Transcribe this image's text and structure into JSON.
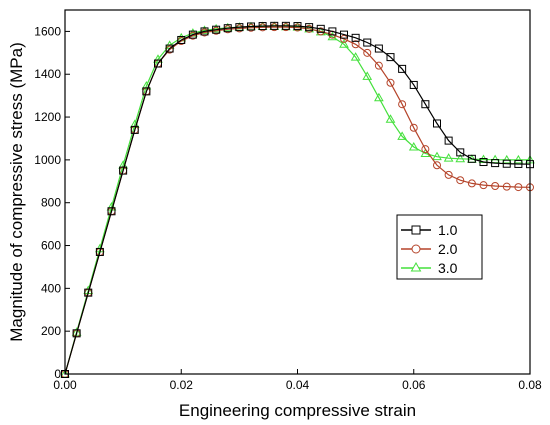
{
  "chart_data": {
    "type": "line",
    "title": "",
    "xlabel": "Engineering compressive strain",
    "ylabel": "Magnitude of compressive stress (MPa)",
    "xlim": [
      0,
      0.08
    ],
    "ylim": [
      0,
      1700
    ],
    "x_ticks": [
      "0.00",
      "0.02",
      "0.04",
      "0.06",
      "0.08"
    ],
    "x_tick_values": [
      0,
      0.02,
      0.04,
      0.06,
      0.08
    ],
    "y_ticks": [
      "0",
      "200",
      "400",
      "600",
      "800",
      "1000",
      "1200",
      "1400",
      "1600"
    ],
    "y_tick_values": [
      0,
      200,
      400,
      600,
      800,
      1000,
      1200,
      1400,
      1600
    ],
    "grid": false,
    "legend_position": "right-middle",
    "series": [
      {
        "name": "1.0",
        "color": "#000000",
        "marker": "square",
        "x": [
          0.0,
          0.002,
          0.004,
          0.006,
          0.008,
          0.01,
          0.012,
          0.014,
          0.016,
          0.018,
          0.02,
          0.022,
          0.024,
          0.026,
          0.028,
          0.03,
          0.032,
          0.034,
          0.036,
          0.038,
          0.04,
          0.042,
          0.044,
          0.046,
          0.048,
          0.05,
          0.052,
          0.054,
          0.056,
          0.058,
          0.06,
          0.062,
          0.064,
          0.066,
          0.068,
          0.07,
          0.072,
          0.074,
          0.076,
          0.078,
          0.08
        ],
        "y": [
          0,
          190,
          380,
          570,
          760,
          950,
          1140,
          1320,
          1450,
          1520,
          1560,
          1585,
          1600,
          1608,
          1615,
          1620,
          1623,
          1625,
          1626,
          1626,
          1625,
          1620,
          1612,
          1600,
          1585,
          1570,
          1548,
          1520,
          1480,
          1425,
          1350,
          1260,
          1170,
          1090,
          1035,
          1005,
          990,
          985,
          982,
          981,
          980
        ]
      },
      {
        "name": "2.0",
        "color": "#b5442a",
        "marker": "circle",
        "x": [
          0.0,
          0.002,
          0.004,
          0.006,
          0.008,
          0.01,
          0.012,
          0.014,
          0.016,
          0.018,
          0.02,
          0.022,
          0.024,
          0.026,
          0.028,
          0.03,
          0.032,
          0.034,
          0.036,
          0.038,
          0.04,
          0.042,
          0.044,
          0.046,
          0.048,
          0.05,
          0.052,
          0.054,
          0.056,
          0.058,
          0.06,
          0.062,
          0.064,
          0.066,
          0.068,
          0.07,
          0.072,
          0.074,
          0.076,
          0.078,
          0.08
        ],
        "y": [
          0,
          190,
          380,
          570,
          760,
          950,
          1140,
          1320,
          1450,
          1515,
          1555,
          1580,
          1595,
          1603,
          1610,
          1614,
          1617,
          1619,
          1620,
          1620,
          1618,
          1612,
          1600,
          1585,
          1565,
          1540,
          1500,
          1440,
          1360,
          1260,
          1150,
          1050,
          975,
          930,
          905,
          890,
          882,
          878,
          875,
          873,
          872
        ]
      },
      {
        "name": "3.0",
        "color": "#44e03c",
        "marker": "triangle",
        "x": [
          0.0,
          0.002,
          0.004,
          0.006,
          0.008,
          0.01,
          0.012,
          0.014,
          0.016,
          0.018,
          0.02,
          0.022,
          0.024,
          0.026,
          0.028,
          0.03,
          0.032,
          0.034,
          0.036,
          0.038,
          0.04,
          0.042,
          0.044,
          0.046,
          0.048,
          0.05,
          0.052,
          0.054,
          0.056,
          0.058,
          0.06,
          0.062,
          0.064,
          0.066,
          0.068,
          0.07,
          0.072,
          0.074,
          0.076,
          0.078,
          0.08
        ],
        "y": [
          0,
          195,
          390,
          585,
          780,
          975,
          1165,
          1345,
          1470,
          1535,
          1570,
          1592,
          1605,
          1612,
          1617,
          1620,
          1622,
          1623,
          1623,
          1622,
          1620,
          1612,
          1598,
          1575,
          1540,
          1480,
          1390,
          1290,
          1190,
          1110,
          1060,
          1030,
          1015,
          1008,
          1005,
          1003,
          1002,
          1001,
          1000,
          1000,
          1000
        ]
      }
    ]
  }
}
